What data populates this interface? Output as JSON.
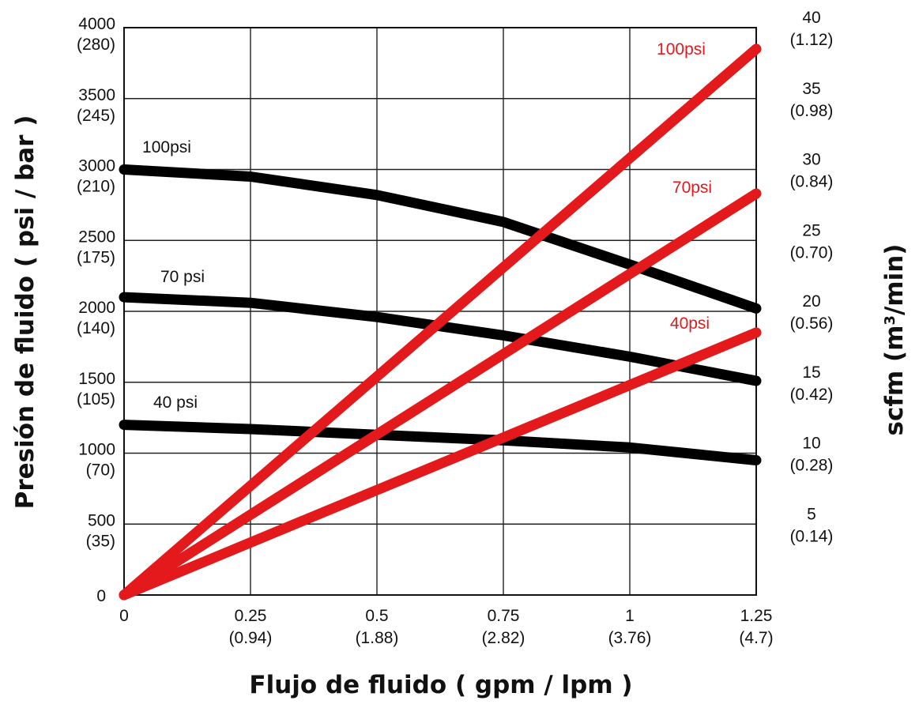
{
  "chart_data": {
    "type": "line",
    "xlabel": "Flujo de fluido  ( gpm / lpm )",
    "ylabel": "Presión de fluido  ( psi / bar )",
    "y2label_prefix": "scfm (m",
    "y2label_sup": "3",
    "y2label_suffix": "/min)",
    "xlim": [
      0,
      1.25
    ],
    "ylim": [
      0,
      4000
    ],
    "y2lim": [
      0,
      40
    ],
    "grid": true,
    "x_ticks": [
      {
        "value": 0,
        "label": "0",
        "sub": ""
      },
      {
        "value": 0.25,
        "label": "0.25",
        "sub": "(0.94)"
      },
      {
        "value": 0.5,
        "label": "0.5",
        "sub": "(1.88)"
      },
      {
        "value": 0.75,
        "label": "0.75",
        "sub": "(2.82)"
      },
      {
        "value": 1,
        "label": "1",
        "sub": "(3.76)"
      },
      {
        "value": 1.25,
        "label": "1.25",
        "sub": "(4.7)"
      }
    ],
    "y_ticks": [
      {
        "value": 0,
        "label": "0",
        "sub": ""
      },
      {
        "value": 500,
        "label": "500",
        "sub": "(35)"
      },
      {
        "value": 1000,
        "label": "1000",
        "sub": "(70)"
      },
      {
        "value": 1500,
        "label": "1500",
        "sub": "(105)"
      },
      {
        "value": 2000,
        "label": "2000",
        "sub": "(140)"
      },
      {
        "value": 2500,
        "label": "2500",
        "sub": "(175)"
      },
      {
        "value": 3000,
        "label": "3000",
        "sub": "(210)"
      },
      {
        "value": 3500,
        "label": "3500",
        "sub": "(245)"
      },
      {
        "value": 4000,
        "label": "4000",
        "sub": "(280)"
      }
    ],
    "y2_ticks": [
      {
        "value": 5,
        "label": "5",
        "sub": "(0.14)"
      },
      {
        "value": 10,
        "label": "10",
        "sub": "(0.28)"
      },
      {
        "value": 15,
        "label": "15",
        "sub": "(0.42)"
      },
      {
        "value": 20,
        "label": "20",
        "sub": "(0.56)"
      },
      {
        "value": 25,
        "label": "25",
        "sub": "(0.70)"
      },
      {
        "value": 30,
        "label": "30",
        "sub": "(0.84)"
      },
      {
        "value": 35,
        "label": "35",
        "sub": "(0.98)"
      },
      {
        "value": 40,
        "label": "40",
        "sub": "(1.12)"
      }
    ],
    "series": [
      {
        "name": "100psi",
        "axis": "left",
        "color": "#000000",
        "x": [
          0,
          0.25,
          0.5,
          0.75,
          1,
          1.25
        ],
        "y": [
          3000,
          2950,
          2820,
          2630,
          2330,
          2020
        ]
      },
      {
        "name": "70 psi",
        "axis": "left",
        "color": "#000000",
        "x": [
          0,
          0.25,
          0.5,
          0.75,
          1,
          1.25
        ],
        "y": [
          2100,
          2060,
          1960,
          1830,
          1680,
          1510
        ]
      },
      {
        "name": "40 psi",
        "axis": "left",
        "color": "#000000",
        "x": [
          0,
          0.25,
          0.5,
          0.75,
          1,
          1.25
        ],
        "y": [
          1200,
          1170,
          1130,
          1090,
          1040,
          950
        ]
      },
      {
        "name": "100psi",
        "axis": "right",
        "color": "#e3191c",
        "x": [
          0,
          1.25
        ],
        "y": [
          0,
          38.5
        ]
      },
      {
        "name": "70psi",
        "axis": "right",
        "color": "#e3191c",
        "x": [
          0,
          1.25
        ],
        "y": [
          0,
          28.3
        ]
      },
      {
        "name": "40psi",
        "axis": "right",
        "color": "#e3191c",
        "x": [
          0,
          1.25
        ],
        "y": [
          0,
          18.5
        ]
      }
    ]
  }
}
